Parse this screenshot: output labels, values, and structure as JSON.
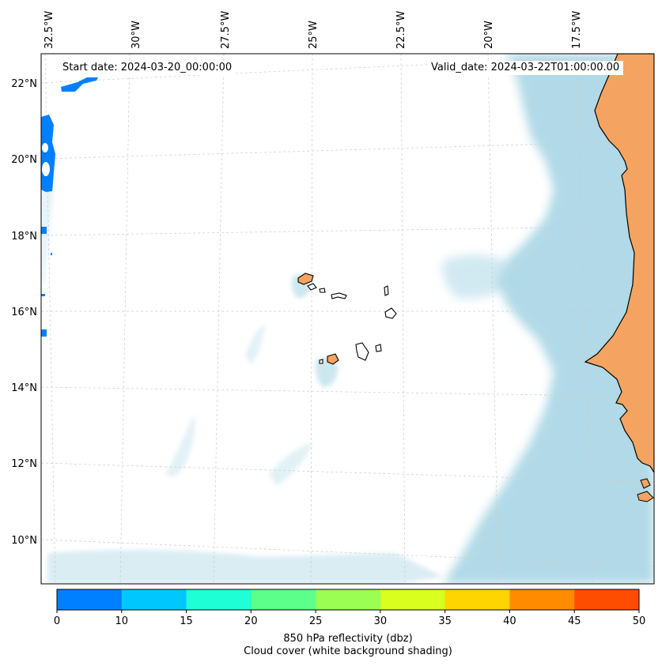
{
  "header": {
    "start_date": "Start date: 2024-03-20_00:00:00",
    "valid_date": "Valid_date: 2024-03-22T01:00:00.00"
  },
  "map": {
    "longitude_labels": [
      "32.5°W",
      "30°W",
      "27.5°W",
      "25°W",
      "22.5°W",
      "20°W",
      "17.5°W"
    ],
    "latitude_labels": [
      "22°N",
      "20°N",
      "18°N",
      "16°N",
      "14°N",
      "12°N",
      "10°N"
    ],
    "gridlines": true,
    "colors": {
      "cloud_cover": "#add8e6",
      "land": "#f4a460",
      "reflectivity_low": "#0080ff"
    }
  },
  "colorbar": {
    "ticks": [
      "0",
      "10",
      "15",
      "20",
      "25",
      "30",
      "35",
      "40",
      "45",
      "50"
    ],
    "colors": [
      "#0080ff",
      "#00c8ff",
      "#1effd6",
      "#5cff8a",
      "#9aff52",
      "#d8ff1e",
      "#ffd500",
      "#ff8c00",
      "#ff4d00"
    ],
    "label_line1": "850 hPa reflectivity (dbz)",
    "label_line2": "Cloud cover (white background shading)"
  }
}
